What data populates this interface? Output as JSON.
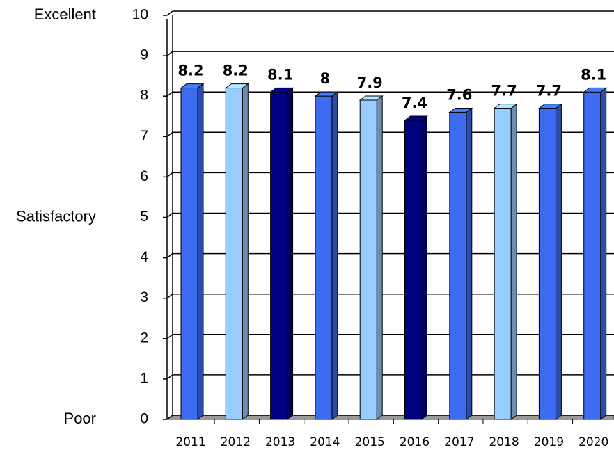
{
  "chart_data": {
    "type": "bar3d",
    "categories": [
      "2011",
      "2012",
      "2013",
      "2014",
      "2015",
      "2016",
      "2017",
      "2018",
      "2019",
      "2020"
    ],
    "values": [
      8.2,
      8.2,
      8.1,
      8,
      7.9,
      7.4,
      7.6,
      7.7,
      7.7,
      8.1
    ],
    "colors": [
      "#3d6cf0",
      "#99ccff",
      "#000080",
      "#3d6cf0",
      "#99ccff",
      "#000080",
      "#3d6cf0",
      "#99ccff",
      "#3d6cf0",
      "#3d6cf0"
    ],
    "ylim": [
      0,
      10
    ],
    "yticks": [
      0,
      1,
      2,
      3,
      4,
      5,
      6,
      7,
      8,
      9,
      10
    ],
    "grid": true,
    "y_annotations": [
      {
        "label": "Excellent",
        "value": 10
      },
      {
        "label": "Satisfactory",
        "value": 5
      },
      {
        "label": "Poor",
        "value": 0
      }
    ]
  }
}
